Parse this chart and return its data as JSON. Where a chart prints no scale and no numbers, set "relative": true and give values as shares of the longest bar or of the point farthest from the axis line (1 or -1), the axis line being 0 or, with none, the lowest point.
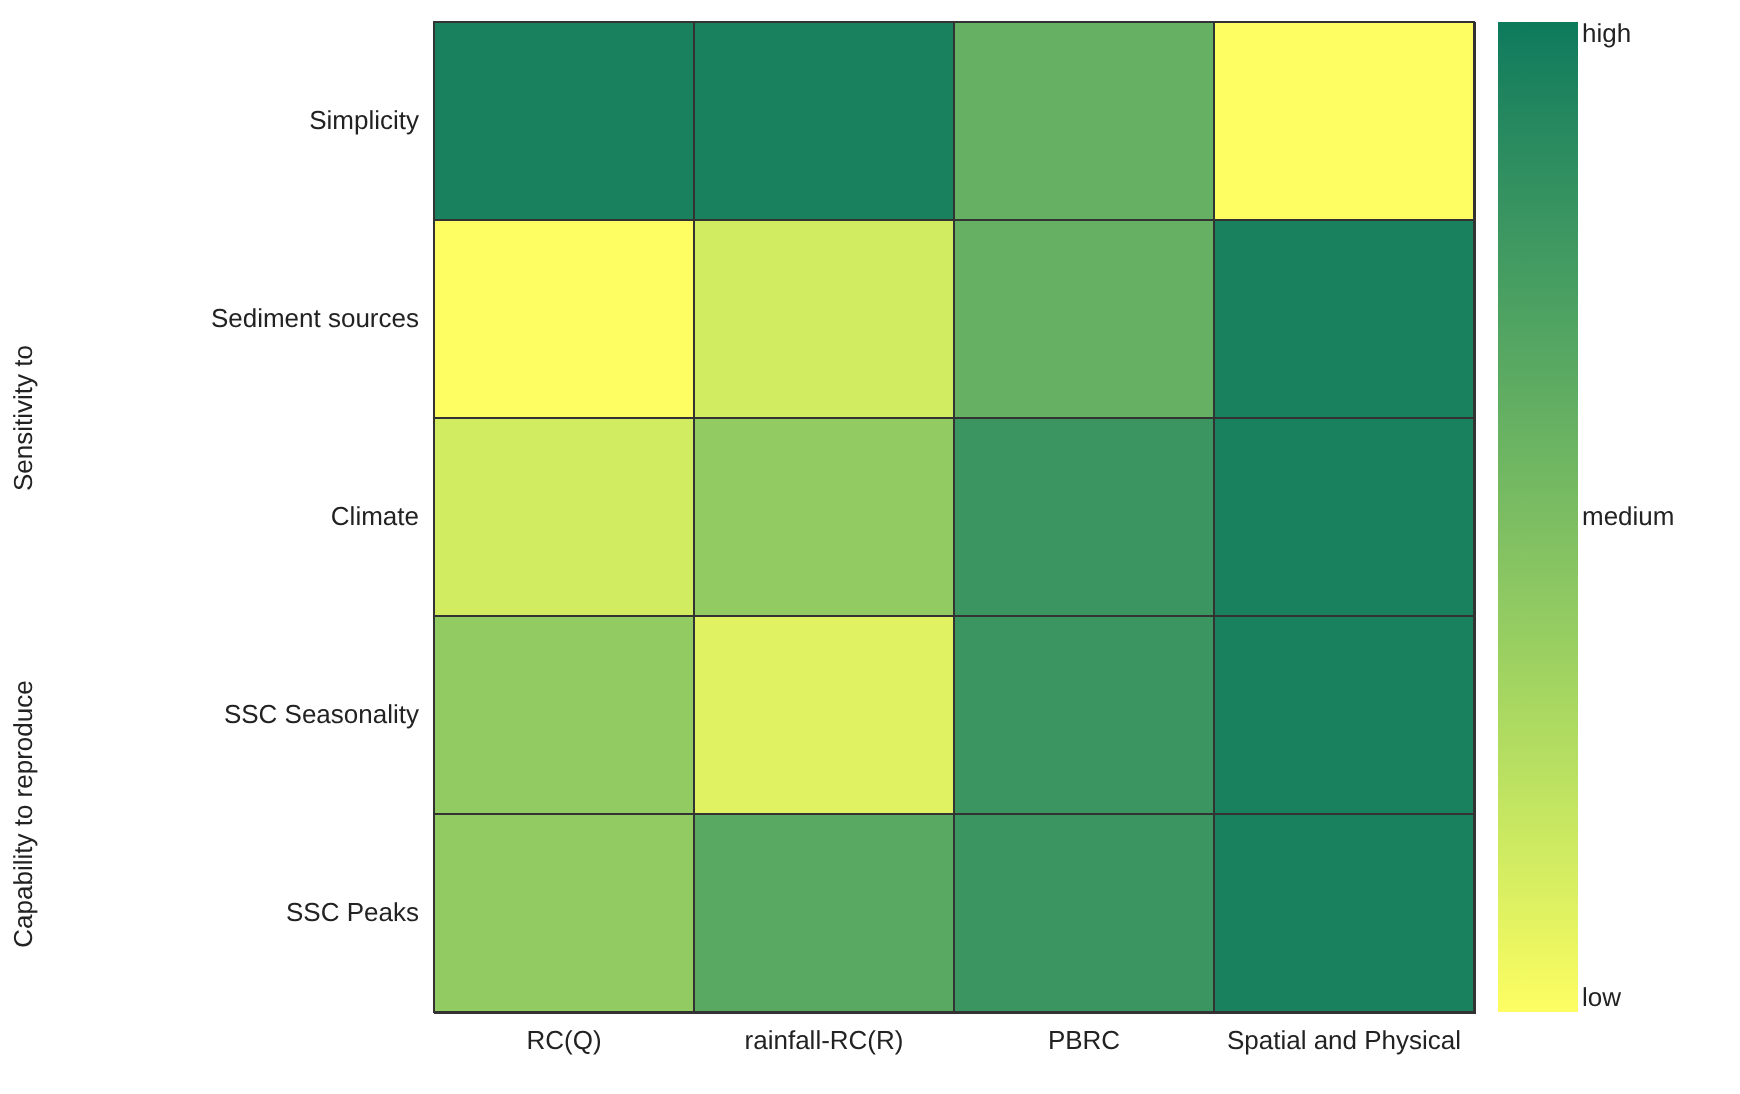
{
  "chart_data": {
    "type": "heatmap",
    "categories": [
      "RC(Q)",
      "rainfall-RC(R)",
      "PBRC",
      "Spatial and Physical"
    ],
    "y_categories": [
      "Simplicity",
      "Sediment sources",
      "Climate",
      "SSC Seasonality",
      "SSC Peaks"
    ],
    "cells": [
      [
        0.95,
        0.95,
        0.6,
        0.0
      ],
      [
        0.0,
        0.15,
        0.6,
        0.95
      ],
      [
        0.15,
        0.4,
        0.8,
        0.95
      ],
      [
        0.4,
        0.1,
        0.8,
        0.95
      ],
      [
        0.4,
        0.65,
        0.8,
        0.95
      ]
    ],
    "relative": true,
    "cticks": [
      {
        "value": 0,
        "label": "low"
      },
      {
        "value": 0.5,
        "label": "medium"
      },
      {
        "value": 1,
        "label": "high"
      }
    ],
    "annotations": [
      "Sensitivity to",
      "Capability to reproduce"
    ]
  }
}
